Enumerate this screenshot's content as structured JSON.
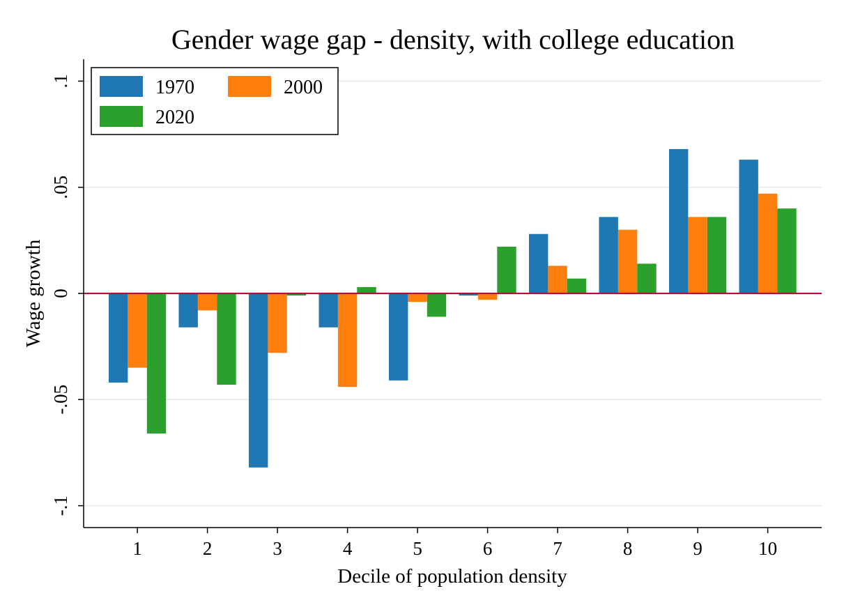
{
  "chart_data": {
    "type": "bar",
    "title": "Gender wage gap - density, with college education",
    "xlabel": "Decile of population density",
    "ylabel": "Wage growth",
    "categories": [
      "1",
      "2",
      "3",
      "4",
      "5",
      "6",
      "7",
      "8",
      "9",
      "10"
    ],
    "series": [
      {
        "name": "1970",
        "color": "#1f77b4",
        "values": [
          -0.042,
          -0.016,
          -0.082,
          -0.016,
          -0.041,
          -0.001,
          0.028,
          0.036,
          0.068,
          0.063
        ]
      },
      {
        "name": "2000",
        "color": "#ff7f0e",
        "values": [
          -0.035,
          -0.008,
          -0.028,
          -0.044,
          -0.004,
          -0.003,
          0.013,
          0.03,
          0.036,
          0.047
        ]
      },
      {
        "name": "2020",
        "color": "#2ca02c",
        "values": [
          -0.066,
          -0.043,
          -0.001,
          0.003,
          -0.011,
          0.022,
          0.007,
          0.014,
          0.036,
          0.04
        ]
      }
    ],
    "ylim": [
      -0.11,
      0.11
    ],
    "yticks": [
      {
        "value": -0.1,
        "label": "-.1"
      },
      {
        "value": -0.05,
        "label": "-.05"
      },
      {
        "value": 0,
        "label": "0"
      },
      {
        "value": 0.05,
        "label": ".05"
      },
      {
        "value": 0.1,
        "label": ".1"
      }
    ],
    "grid": true,
    "zero_line_color": "#b0103c",
    "legend_position": "top-left"
  }
}
